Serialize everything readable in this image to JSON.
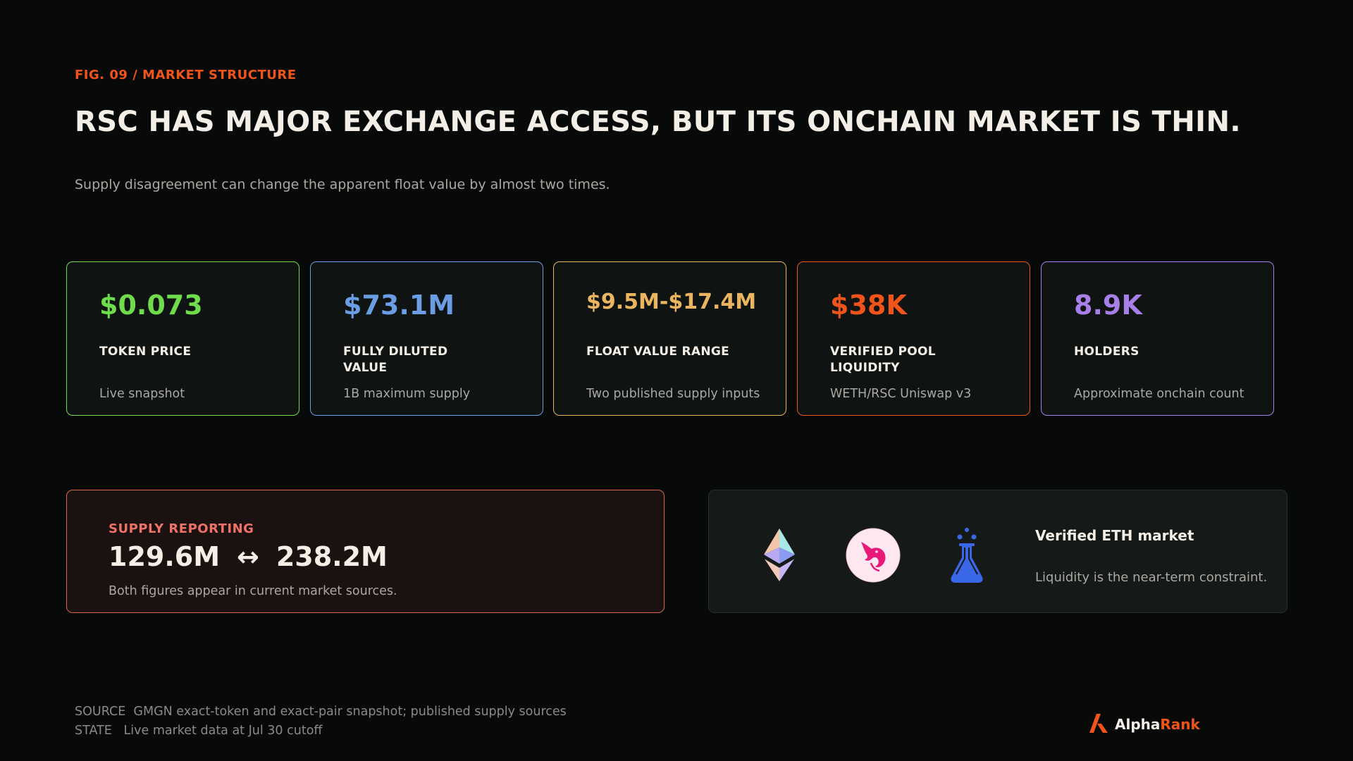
{
  "header": {
    "fig_label": "FIG. 09 / MARKET STRUCTURE",
    "headline": "RSC HAS MAJOR EXCHANGE ACCESS, BUT ITS ONCHAIN MARKET IS THIN.",
    "subtitle": "Supply disagreement can change the apparent float value by almost two times."
  },
  "cards": [
    {
      "value": "$0.073",
      "label": "TOKEN PRICE",
      "desc": "Live snapshot",
      "color": "#6fdc4c"
    },
    {
      "value": "$73.1M",
      "label": "FULLY DILUTED VALUE",
      "desc": "1B maximum supply",
      "color": "#6a9de4"
    },
    {
      "value": "$9.5M-$17.4M",
      "label": "FLOAT VALUE RANGE",
      "desc": "Two published supply inputs",
      "color": "#eab55e"
    },
    {
      "value": "$38K",
      "label": "VERIFIED POOL LIQUIDITY",
      "desc": "WETH/RSC Uniswap v3",
      "color": "#f0541a"
    },
    {
      "value": "8.9K",
      "label": "HOLDERS",
      "desc": "Approximate onchain count",
      "color": "#a77fe8"
    }
  ],
  "supply": {
    "title": "SUPPLY REPORTING",
    "low": "129.6M",
    "arrow": "↔",
    "high": "238.2M",
    "note": "Both figures appear in current market sources.",
    "color": "#d8674f"
  },
  "eth_market": {
    "icons": [
      "ethereum-icon",
      "uniswap-icon",
      "flask-icon"
    ],
    "title": "Verified ETH market",
    "note": "Liquidity is the near-term constraint."
  },
  "footer": {
    "source_label": "SOURCE",
    "source_text": "GMGN exact-token and exact-pair snapshot; published supply sources",
    "state_label": "STATE",
    "state_text": "Live market data at Jul 30 cutoff"
  },
  "brand": {
    "name_part1": "Alpha",
    "name_part2": "Rank",
    "accent": "#f0541a"
  }
}
